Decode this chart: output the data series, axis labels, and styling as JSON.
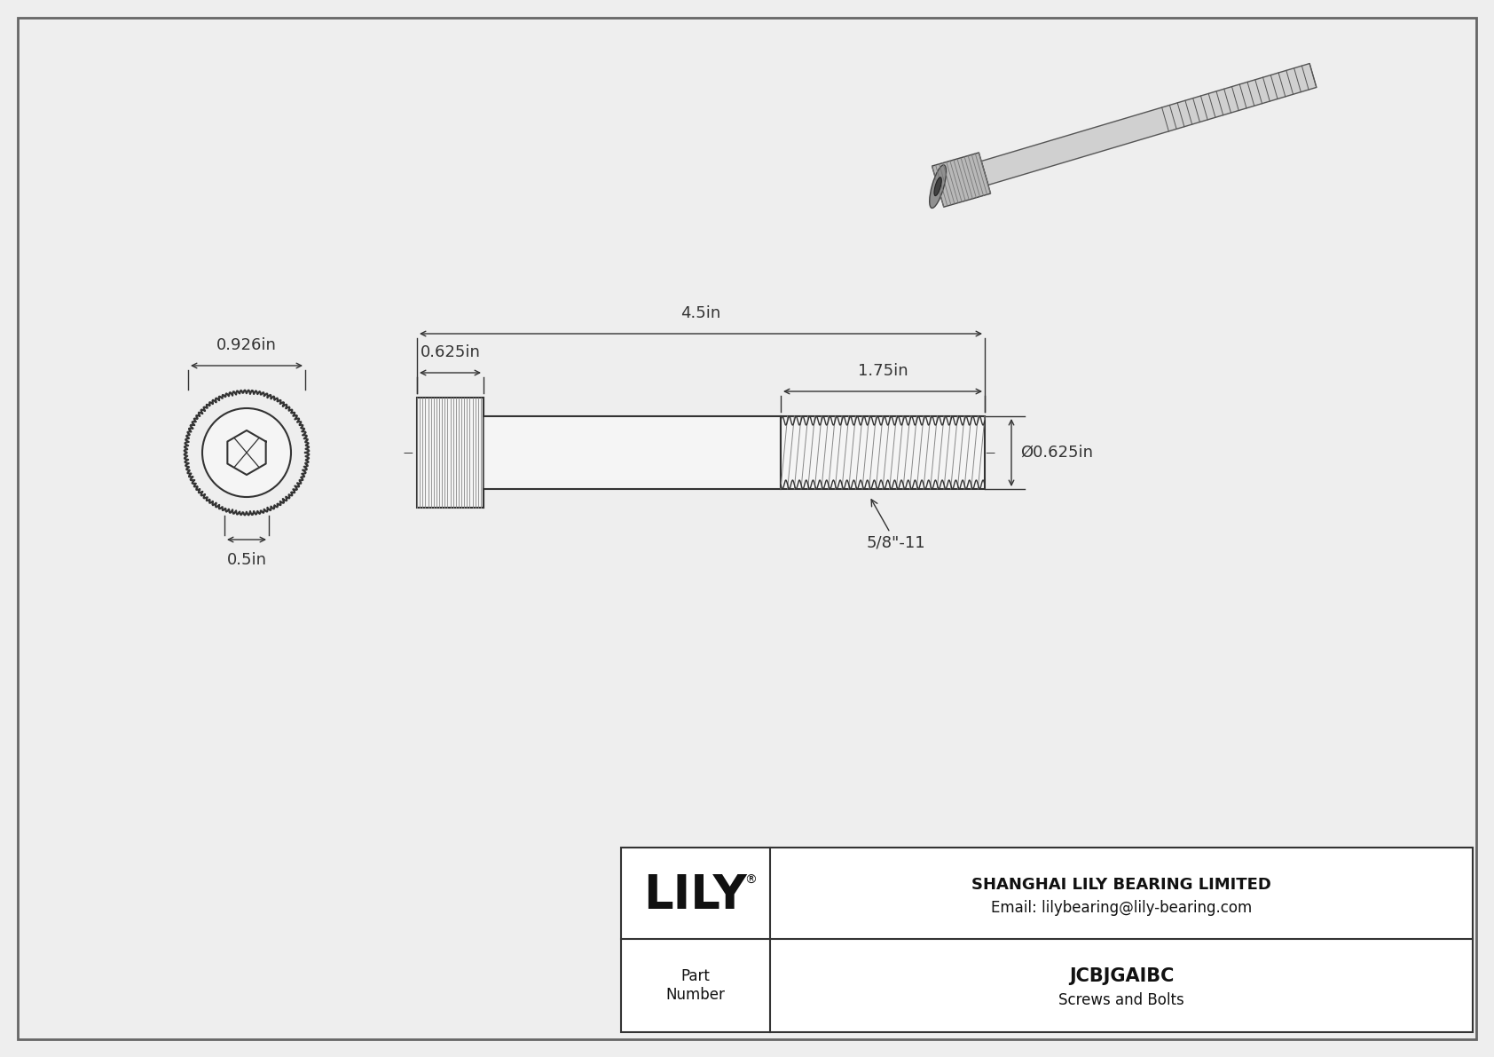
{
  "bg_color": "#eeeeee",
  "line_color": "#333333",
  "dim_color": "#333333",
  "title_company": "SHANGHAI LILY BEARING LIMITED",
  "title_email": "Email: lilybearing@lily-bearing.com",
  "part_number": "JCBJGAIBC",
  "part_category": "Screws and Bolts",
  "part_label": "Part\nNumber",
  "dim_head_width": "0.926in",
  "dim_head_length": "0.625in",
  "dim_total_length": "4.5in",
  "dim_thread_length": "1.75in",
  "dim_shaft_dia": "Ø0.625in",
  "dim_hex_socket": "0.5in",
  "dim_thread_pitch": "5/8\"-11",
  "font_size_dim": 13,
  "font_size_title": 12,
  "font_size_logo": 38
}
